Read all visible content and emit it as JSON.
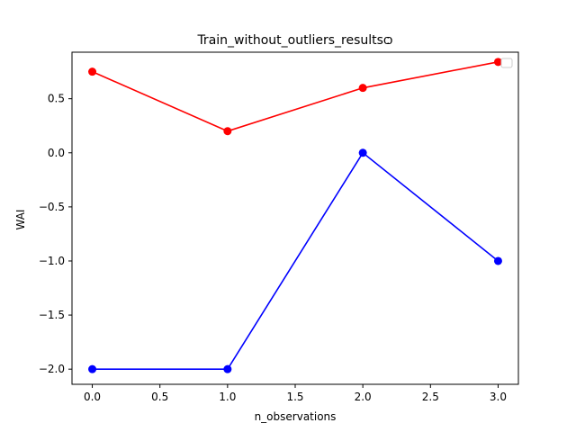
{
  "chart_data": {
    "type": "line",
    "title": "Train_without_outliers_resultsѻ",
    "xlabel": "n_observations",
    "ylabel": "WAI",
    "xlim": [
      -0.15,
      3.15
    ],
    "ylim": [
      -2.14,
      0.93
    ],
    "x_ticks": [
      0.0,
      0.5,
      1.0,
      1.5,
      2.0,
      2.5,
      3.0
    ],
    "x_tick_labels": [
      "0.0",
      "0.5",
      "1.0",
      "1.5",
      "2.0",
      "2.5",
      "3.0"
    ],
    "y_ticks": [
      0.5,
      0.0,
      -0.5,
      -1.0,
      -1.5,
      -2.0
    ],
    "y_tick_labels": [
      "0.5",
      "0.0",
      "−0.5",
      "−1.0",
      "−1.5",
      "−2.0"
    ],
    "grid": false,
    "legend": {
      "placement": "top-right",
      "entries": []
    },
    "x": [
      0,
      1,
      2,
      3
    ],
    "series": [
      {
        "color": "#ff0000",
        "marker": "circle",
        "values": [
          0.75,
          0.2,
          0.6,
          0.84
        ]
      },
      {
        "color": "#0000ff",
        "marker": "circle",
        "values": [
          -2.0,
          -2.0,
          0.0,
          -1.0
        ]
      }
    ]
  }
}
